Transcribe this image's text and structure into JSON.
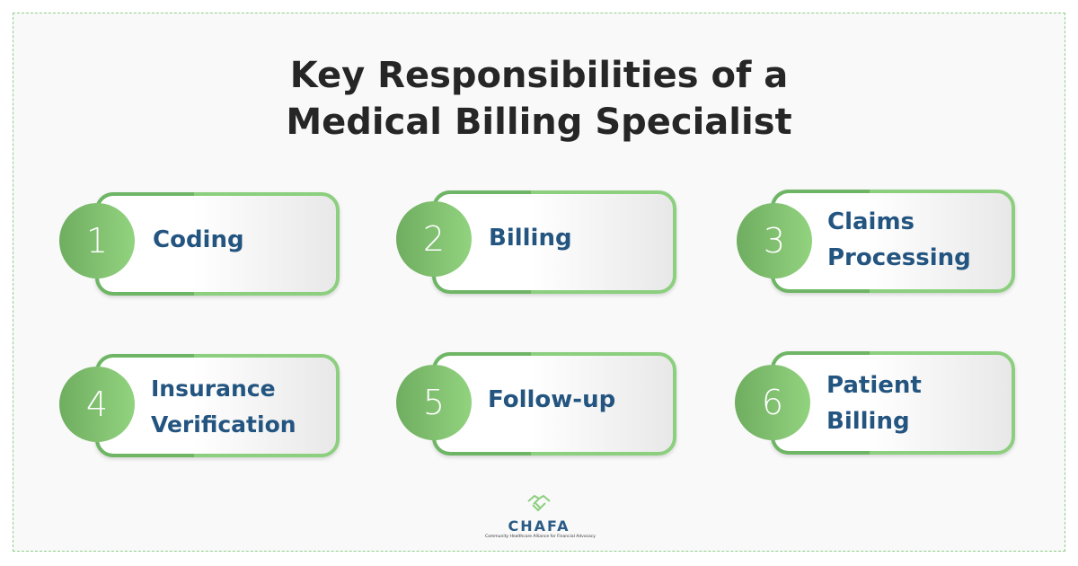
{
  "title_line1": "Key Responsibilities of a",
  "title_line2": "Medical Billing Specialist",
  "items": [
    {
      "number": "1",
      "label": "Coding"
    },
    {
      "number": "2",
      "label": "Billing"
    },
    {
      "number": "3",
      "label": "Claims Processing"
    },
    {
      "number": "4",
      "label": "Insurance Verification"
    },
    {
      "number": "5",
      "label": "Follow-up"
    },
    {
      "number": "6",
      "label": "Patient Billing"
    }
  ],
  "logo": {
    "name": "CHAFA",
    "tagline": "Community Healthcare Alliance for Financial Advocacy",
    "icon": "handshake-icon"
  },
  "colors": {
    "accent": "#8ccf7e",
    "label": "#235580",
    "title": "#262626"
  }
}
